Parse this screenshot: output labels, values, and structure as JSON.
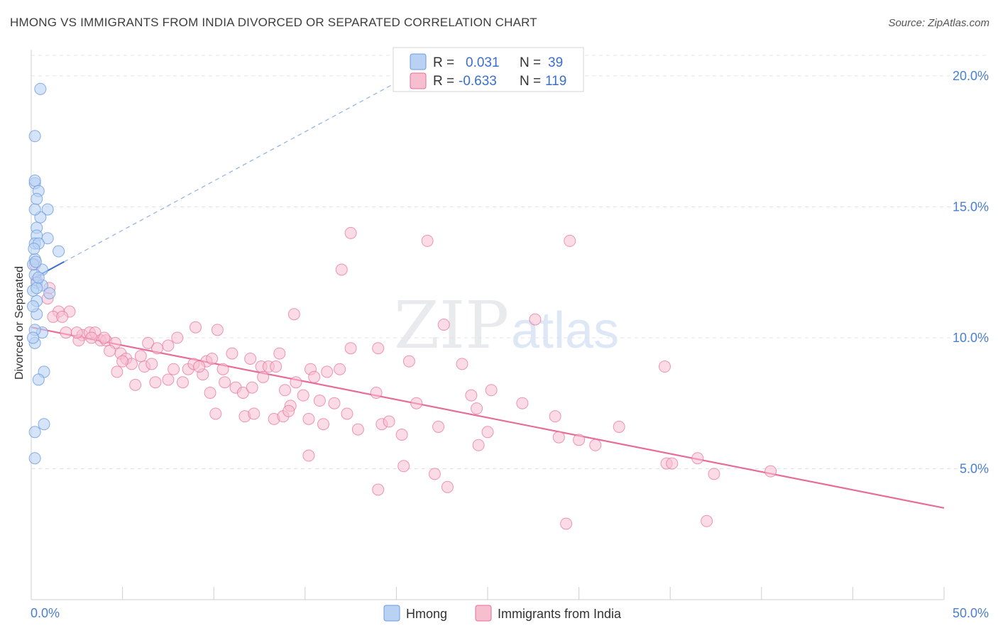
{
  "title": "HMONG VS IMMIGRANTS FROM INDIA DIVORCED OR SEPARATED CORRELATION CHART",
  "source": "Source: ZipAtlas.com",
  "watermark": {
    "zip": "ZIP",
    "atlas": "atlas"
  },
  "colors": {
    "hmong": "#6b9be0",
    "hmong_fill": "#b9d2f3",
    "india": "#e66d98",
    "india_fill": "#f7bed0",
    "tick": "#4a7fcf",
    "grid": "#dfe3ea"
  },
  "legend_box": {
    "rows": [
      {
        "r_label": "R =",
        "r_value": "0.031",
        "n_label": "N =",
        "n_value": "39"
      },
      {
        "r_label": "R =",
        "r_value": "-0.633",
        "n_label": "N =",
        "n_value": "119"
      }
    ]
  },
  "chart_data": {
    "type": "scatter",
    "xlabel": "",
    "ylabel": "Divorced or Separated",
    "xlim": [
      0,
      50
    ],
    "ylim": [
      0,
      21
    ],
    "x_tick_labels": [
      "0.0%",
      "50.0%"
    ],
    "y_ticks": [
      5,
      10,
      15,
      20
    ],
    "y_tick_labels": [
      "5.0%",
      "10.0%",
      "15.0%",
      "20.0%"
    ],
    "grid": "horizontal dashed",
    "legend_position": "bottom-center",
    "series": [
      {
        "name": "Hmong",
        "points": [
          [
            0.5,
            19.5
          ],
          [
            0.2,
            17.7
          ],
          [
            0.2,
            15.9
          ],
          [
            0.2,
            16.0
          ],
          [
            0.4,
            15.6
          ],
          [
            0.3,
            15.3
          ],
          [
            0.9,
            14.9
          ],
          [
            0.5,
            14.6
          ],
          [
            0.3,
            14.2
          ],
          [
            0.3,
            13.9
          ],
          [
            0.9,
            13.8
          ],
          [
            0.2,
            13.6
          ],
          [
            0.4,
            13.6
          ],
          [
            1.5,
            13.3
          ],
          [
            0.2,
            13.0
          ],
          [
            0.6,
            12.6
          ],
          [
            0.2,
            12.4
          ],
          [
            0.3,
            12.1
          ],
          [
            0.6,
            12.0
          ],
          [
            1.0,
            11.7
          ],
          [
            0.3,
            11.4
          ],
          [
            0.3,
            10.9
          ],
          [
            0.6,
            10.2
          ],
          [
            0.2,
            10.3
          ],
          [
            0.2,
            9.8
          ],
          [
            0.7,
            8.7
          ],
          [
            0.4,
            8.4
          ],
          [
            0.7,
            6.7
          ],
          [
            0.2,
            6.4
          ],
          [
            0.2,
            5.4
          ],
          [
            0.1,
            12.8
          ],
          [
            0.1,
            11.8
          ],
          [
            0.1,
            11.2
          ],
          [
            0.15,
            13.4
          ],
          [
            0.25,
            12.9
          ],
          [
            0.3,
            11.9
          ],
          [
            0.2,
            14.9
          ],
          [
            0.1,
            10.0
          ],
          [
            0.4,
            12.3
          ]
        ]
      },
      {
        "name": "Immigrants from India",
        "points": [
          [
            0.2,
            12.8
          ],
          [
            0.3,
            12.2
          ],
          [
            1.0,
            11.9
          ],
          [
            0.9,
            11.5
          ],
          [
            1.5,
            11.0
          ],
          [
            2.1,
            11.0
          ],
          [
            1.2,
            10.8
          ],
          [
            1.7,
            10.8
          ],
          [
            1.9,
            10.2
          ],
          [
            2.8,
            10.1
          ],
          [
            3.2,
            10.2
          ],
          [
            3.5,
            10.2
          ],
          [
            2.6,
            9.9
          ],
          [
            3.8,
            9.9
          ],
          [
            4.1,
            9.9
          ],
          [
            4.6,
            9.8
          ],
          [
            4.3,
            9.5
          ],
          [
            4.9,
            9.4
          ],
          [
            5.2,
            9.2
          ],
          [
            6.4,
            9.8
          ],
          [
            7.5,
            9.7
          ],
          [
            8.0,
            10.0
          ],
          [
            6.9,
            9.6
          ],
          [
            5.5,
            9.0
          ],
          [
            6.2,
            8.9
          ],
          [
            6.6,
            9.0
          ],
          [
            7.8,
            8.8
          ],
          [
            8.6,
            8.8
          ],
          [
            8.9,
            9.0
          ],
          [
            9.6,
            9.1
          ],
          [
            9.0,
            10.4
          ],
          [
            10.2,
            10.3
          ],
          [
            9.4,
            8.6
          ],
          [
            10.5,
            8.8
          ],
          [
            11.0,
            9.4
          ],
          [
            12.0,
            9.2
          ],
          [
            12.6,
            8.9
          ],
          [
            13.0,
            8.9
          ],
          [
            13.4,
            8.9
          ],
          [
            12.7,
            8.5
          ],
          [
            14.5,
            8.3
          ],
          [
            15.3,
            8.8
          ],
          [
            15.5,
            8.5
          ],
          [
            16.2,
            8.7
          ],
          [
            16.9,
            8.8
          ],
          [
            17.5,
            9.6
          ],
          [
            19.0,
            9.6
          ],
          [
            20.7,
            9.1
          ],
          [
            22.6,
            10.5
          ],
          [
            17.0,
            12.6
          ],
          [
            17.5,
            14.0
          ],
          [
            21.7,
            13.7
          ],
          [
            14.4,
            10.9
          ],
          [
            27.6,
            10.7
          ],
          [
            5.7,
            8.2
          ],
          [
            4.7,
            8.7
          ],
          [
            6.8,
            8.3
          ],
          [
            7.5,
            8.4
          ],
          [
            8.3,
            8.3
          ],
          [
            9.8,
            7.9
          ],
          [
            10.6,
            8.3
          ],
          [
            11.2,
            8.1
          ],
          [
            11.6,
            7.9
          ],
          [
            12.1,
            8.1
          ],
          [
            13.9,
            8.0
          ],
          [
            14.9,
            7.8
          ],
          [
            15.8,
            7.6
          ],
          [
            16.6,
            7.5
          ],
          [
            10.1,
            7.1
          ],
          [
            11.7,
            7.0
          ],
          [
            12.2,
            7.1
          ],
          [
            13.3,
            6.9
          ],
          [
            13.8,
            7.0
          ],
          [
            14.2,
            7.4
          ],
          [
            14.1,
            7.2
          ],
          [
            15.2,
            6.9
          ],
          [
            16.0,
            6.7
          ],
          [
            17.3,
            7.1
          ],
          [
            17.9,
            6.5
          ],
          [
            19.2,
            6.7
          ],
          [
            19.6,
            6.8
          ],
          [
            20.3,
            6.3
          ],
          [
            21.1,
            7.5
          ],
          [
            22.3,
            6.6
          ],
          [
            24.1,
            7.8
          ],
          [
            25.0,
            6.4
          ],
          [
            24.4,
            7.3
          ],
          [
            25.2,
            8.0
          ],
          [
            26.9,
            7.5
          ],
          [
            28.7,
            7.0
          ],
          [
            28.9,
            6.2
          ],
          [
            30.0,
            6.1
          ],
          [
            30.9,
            5.9
          ],
          [
            32.2,
            6.6
          ],
          [
            34.8,
            5.2
          ],
          [
            35.1,
            5.2
          ],
          [
            36.5,
            5.4
          ],
          [
            37.4,
            4.8
          ],
          [
            40.5,
            4.9
          ],
          [
            22.8,
            4.3
          ],
          [
            19.0,
            4.2
          ],
          [
            20.4,
            5.1
          ],
          [
            22.1,
            4.8
          ],
          [
            15.2,
            5.5
          ],
          [
            29.3,
            2.9
          ],
          [
            37.0,
            3.0
          ],
          [
            34.7,
            8.9
          ],
          [
            29.5,
            13.7
          ],
          [
            13.6,
            9.4
          ],
          [
            24.5,
            5.9
          ],
          [
            9.2,
            8.9
          ],
          [
            6.0,
            9.3
          ],
          [
            3.3,
            10.0
          ],
          [
            2.5,
            10.2
          ],
          [
            4.0,
            10.0
          ],
          [
            5.0,
            9.1
          ],
          [
            9.9,
            9.2
          ],
          [
            18.9,
            7.9
          ],
          [
            23.6,
            9.0
          ]
        ]
      }
    ],
    "trend_lines": [
      {
        "series": "Hmong",
        "solid": [
          [
            0.2,
            12.3
          ],
          [
            1.8,
            12.9
          ]
        ],
        "dashed": [
          [
            1.8,
            12.9
          ],
          [
            22.0,
            20.5
          ]
        ]
      },
      {
        "series": "Immigrants from India",
        "solid": [
          [
            0.0,
            10.4
          ],
          [
            50.0,
            3.5
          ]
        ]
      }
    ]
  }
}
